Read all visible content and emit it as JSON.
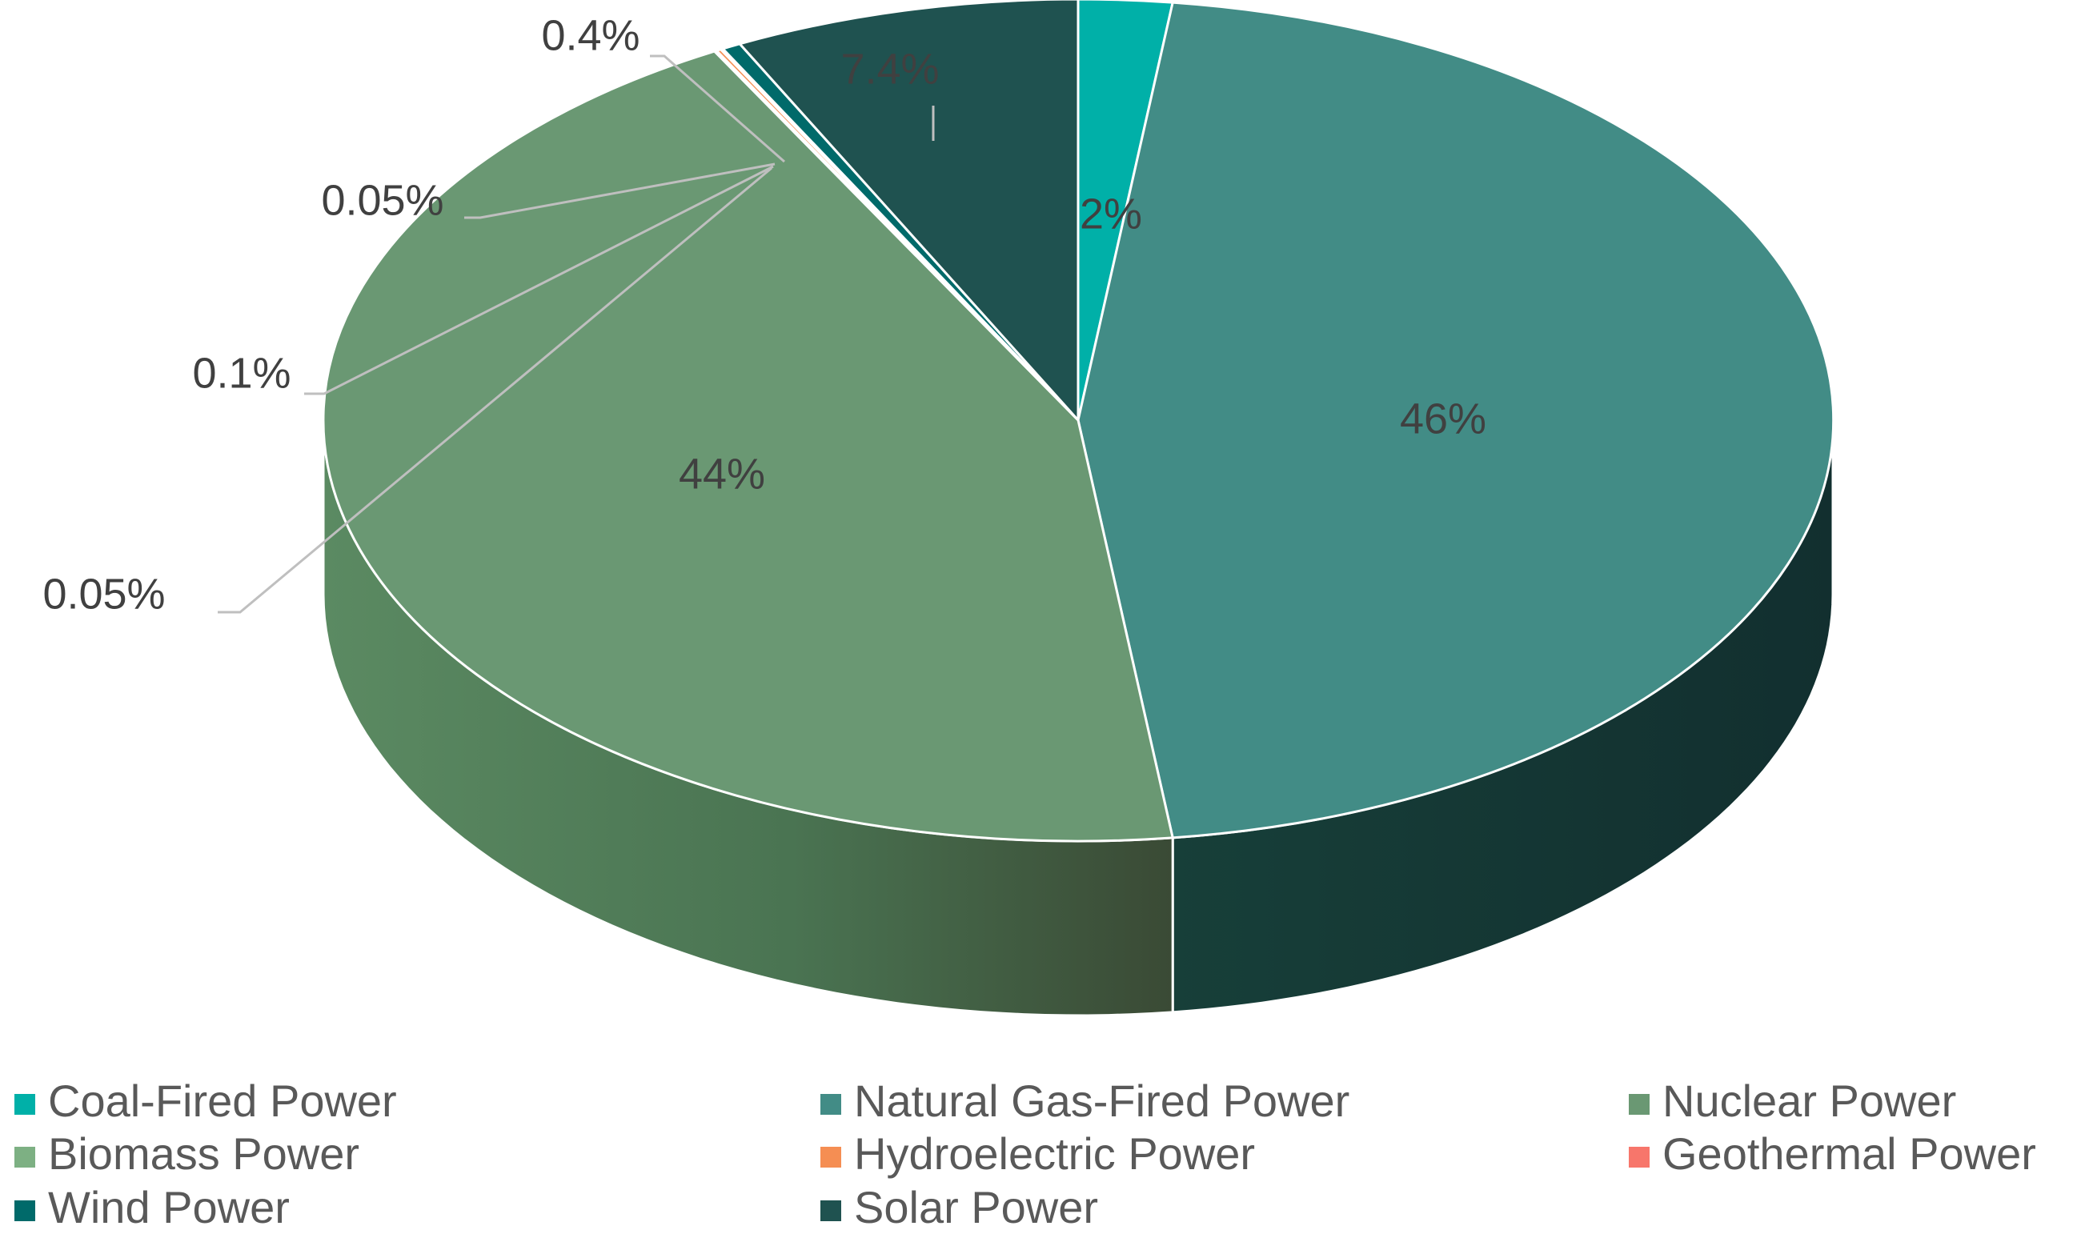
{
  "chart_data": {
    "type": "pie",
    "style": "3d",
    "title": "",
    "slices": [
      {
        "name": "Coal-Fired Power",
        "value": 2,
        "label": "2%",
        "color": "#00B0A8"
      },
      {
        "name": "Natural Gas-Fired Power",
        "value": 46,
        "label": "46%",
        "color": "#428C86"
      },
      {
        "name": "Nuclear Power",
        "value": 44,
        "label": "44%",
        "color": "#6A9873"
      },
      {
        "name": "Biomass Power",
        "value": 0.05,
        "label": "0.05%",
        "color": "#7DB083"
      },
      {
        "name": "Hydroelectric Power",
        "value": 0.1,
        "label": "0.1%",
        "color": "#F58E53"
      },
      {
        "name": "Geothermal Power",
        "value": 0.05,
        "label": "0.05%",
        "color": "#F7766B"
      },
      {
        "name": "Wind Power",
        "value": 0.4,
        "label": "0.4%",
        "color": "#006A6A"
      },
      {
        "name": "Solar Power",
        "value": 7.4,
        "label": "7.4%",
        "color": "#1F5250"
      }
    ],
    "legend": {
      "position": "bottom",
      "columns": 3,
      "items": [
        "Coal-Fired Power",
        "Natural Gas-Fired Power",
        "Nuclear Power",
        "Biomass Power",
        "Hydroelectric Power",
        "Geothermal Power",
        "Wind Power",
        "Solar Power"
      ]
    }
  },
  "colors": {
    "label_text": "#404040",
    "legend_text": "#595959",
    "leader_line": "#BFBFBF",
    "slice_border": "#FFFFFF"
  }
}
